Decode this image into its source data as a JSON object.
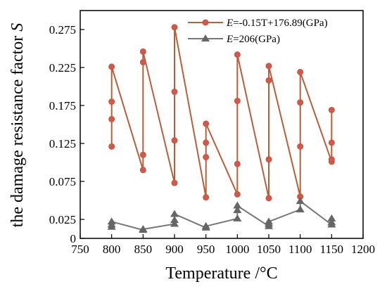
{
  "chart_data": {
    "type": "line",
    "title": "",
    "xlabel": "Temperature /°C",
    "ylabel_prefix": "the damage resistance factor ",
    "ylabel_symbol": "S",
    "xlim": [
      750,
      1200
    ],
    "ylim": [
      0,
      0.3
    ],
    "x_ticks": [
      750,
      800,
      850,
      900,
      950,
      1000,
      1050,
      1100,
      1150,
      1200
    ],
    "y_ticks": [
      0,
      0.025,
      0.075,
      0.125,
      0.175,
      0.225,
      0.275
    ],
    "y_tick_labels": [
      "0",
      "0.025",
      "0.075",
      "0.125",
      "0.175",
      "0.225",
      "0.275"
    ],
    "legend_position": "top-right",
    "series": [
      {
        "name_symbol": "E",
        "name_rest": "=-0.15T+176.89(GPa)",
        "marker": "circle",
        "line_color": "#b5603a",
        "marker_color": "#d9534f",
        "points": [
          [
            800,
            0.121
          ],
          [
            800,
            0.157
          ],
          [
            800,
            0.18
          ],
          [
            800,
            0.226
          ],
          [
            850,
            0.09
          ],
          [
            850,
            0.11
          ],
          [
            850,
            0.232
          ],
          [
            850,
            0.246
          ],
          [
            900,
            0.073
          ],
          [
            900,
            0.129
          ],
          [
            900,
            0.193
          ],
          [
            900,
            0.278
          ],
          [
            950,
            0.054
          ],
          [
            950,
            0.107
          ],
          [
            950,
            0.126
          ],
          [
            950,
            0.151
          ],
          [
            1000,
            0.058
          ],
          [
            1000,
            0.098
          ],
          [
            1000,
            0.181
          ],
          [
            1000,
            0.242
          ],
          [
            1050,
            0.053
          ],
          [
            1050,
            0.104
          ],
          [
            1050,
            0.208
          ],
          [
            1050,
            0.227
          ],
          [
            1100,
            0.055
          ],
          [
            1100,
            0.121
          ],
          [
            1100,
            0.179
          ],
          [
            1100,
            0.219
          ],
          [
            1150,
            0.101
          ],
          [
            1150,
            0.104
          ],
          [
            1150,
            0.126
          ],
          [
            1150,
            0.169
          ]
        ]
      },
      {
        "name_symbol": "E",
        "name_rest": "=206(GPa)",
        "marker": "triangle",
        "line_color": "#777777",
        "marker_color": "#666666",
        "points": [
          [
            800,
            0.015
          ],
          [
            800,
            0.018
          ],
          [
            800,
            0.022
          ],
          [
            850,
            0.011
          ],
          [
            850,
            0.012
          ],
          [
            900,
            0.019
          ],
          [
            900,
            0.024
          ],
          [
            900,
            0.032
          ],
          [
            950,
            0.014
          ],
          [
            950,
            0.016
          ],
          [
            1000,
            0.026
          ],
          [
            1000,
            0.037
          ],
          [
            1000,
            0.043
          ],
          [
            1050,
            0.016
          ],
          [
            1050,
            0.019
          ],
          [
            1050,
            0.022
          ],
          [
            1100,
            0.038
          ],
          [
            1100,
            0.049
          ],
          [
            1150,
            0.018
          ],
          [
            1150,
            0.021
          ],
          [
            1150,
            0.026
          ]
        ]
      }
    ]
  }
}
